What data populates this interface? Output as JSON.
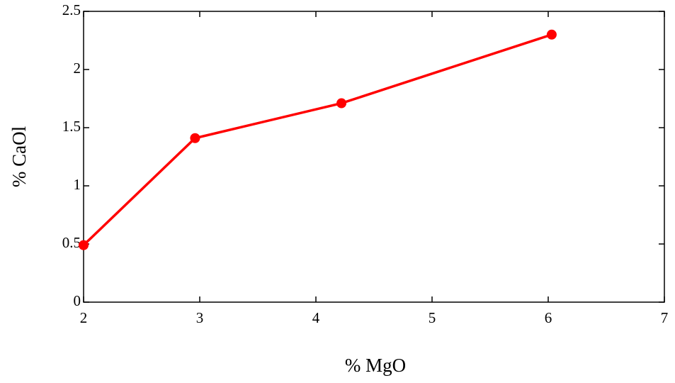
{
  "chart_data": {
    "type": "line",
    "x_label": "% MgO",
    "y_label": "% CaOl",
    "x": [
      2,
      2.96,
      4.22,
      6.03
    ],
    "values": [
      0.49,
      1.41,
      1.71,
      2.3
    ],
    "color": "#ff0000",
    "xlim": [
      2,
      7
    ],
    "xticks": [
      2,
      3,
      4,
      5,
      6,
      7
    ],
    "ylim": [
      0,
      2.5
    ],
    "yticks": [
      0,
      0.5,
      1,
      1.5,
      2,
      2.5
    ],
    "grid": false
  }
}
